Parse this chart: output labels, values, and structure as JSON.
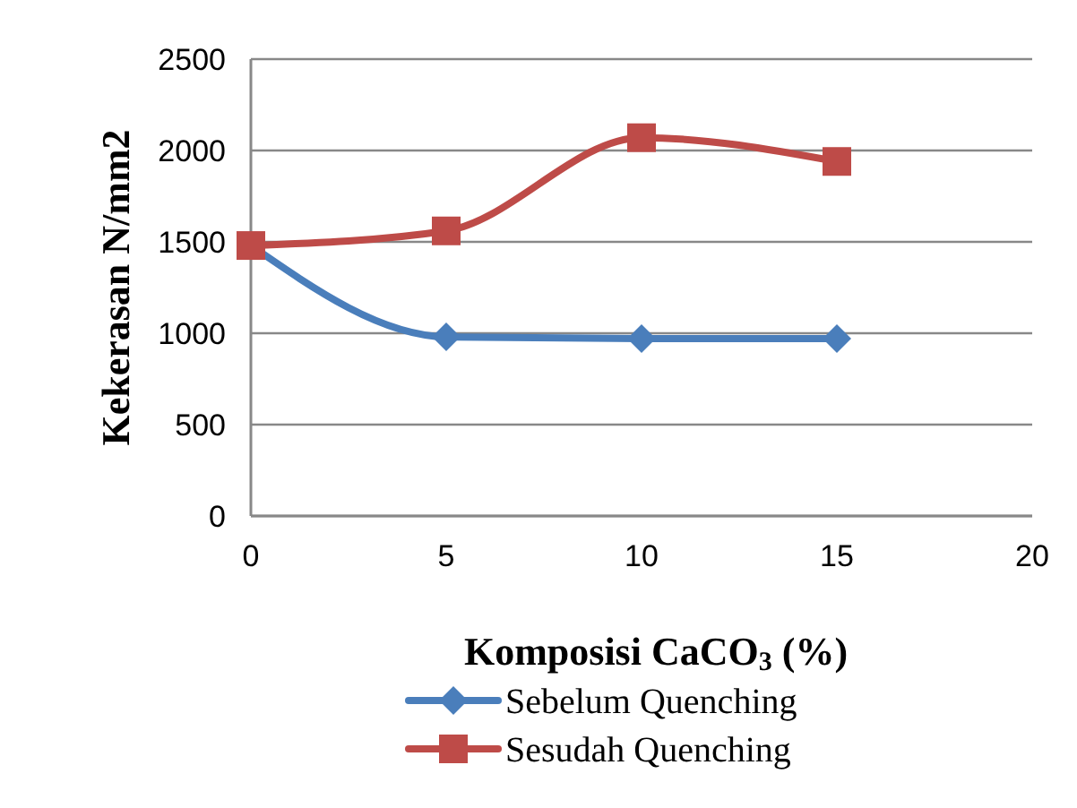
{
  "chart_data": {
    "type": "line",
    "xlabel": "Komposisi CaCO$_{3}$ (%)",
    "ylabel": "Kekerasan N/mm2",
    "x": [
      0,
      5,
      10,
      15
    ],
    "xlim": [
      0,
      20
    ],
    "xticks": [
      0,
      5,
      10,
      15,
      20
    ],
    "ylim": [
      0,
      2500
    ],
    "yticks": [
      0,
      500,
      1000,
      1500,
      2000,
      2500
    ],
    "grid": "y",
    "legend": "bottom",
    "series": [
      {
        "name": "Sebelum Quenching",
        "color": "#4a7ebb",
        "marker": "diamond",
        "values": [
          1480,
          980,
          970,
          970
        ]
      },
      {
        "name": "Sesudah Quenching",
        "color": "#be4b48",
        "marker": "square",
        "values": [
          1480,
          1560,
          2070,
          1940
        ]
      }
    ]
  }
}
